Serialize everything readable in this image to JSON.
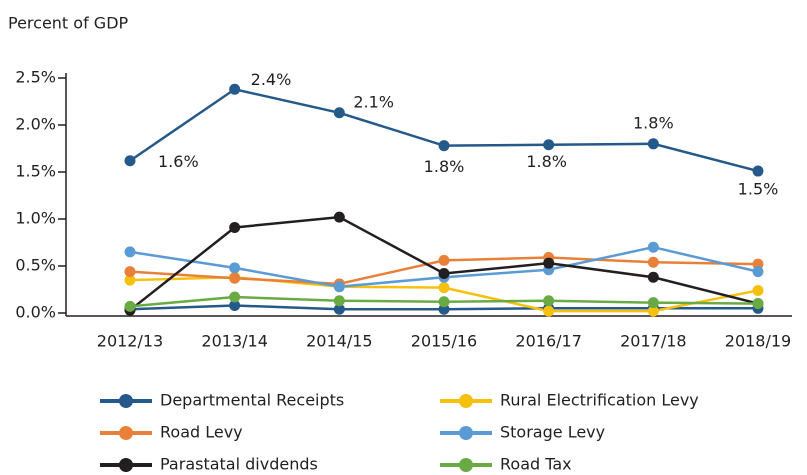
{
  "chart_data": {
    "type": "line",
    "title": "Percent of GDP",
    "categories": [
      "2012/13",
      "2013/14",
      "2014/15",
      "2015/16",
      "2016/17",
      "2017/18",
      "2018/19"
    ],
    "ylim": [
      0,
      2.5
    ],
    "yticks": [
      {
        "value": 0,
        "label": "0.0%"
      },
      {
        "value": 0.5,
        "label": "0.5%"
      },
      {
        "value": 1,
        "label": "1.0%"
      },
      {
        "value": 1.5,
        "label": "1.5%"
      },
      {
        "value": 2,
        "label": "2.0%"
      },
      {
        "value": 2.5,
        "label": "2.5%"
      }
    ],
    "series": [
      {
        "color": "#24598a",
        "values": [
          1.62,
          2.38,
          2.13,
          1.78,
          1.79,
          1.8,
          1.51
        ],
        "value_labels": [
          "1.6%",
          "2.4%",
          "2.1%",
          "1.8%",
          "1.8%",
          "1.8%",
          "1.5%"
        ]
      },
      {
        "name": "Departmental Receipts",
        "color": "#24598a",
        "values": [
          0.04,
          0.08,
          0.04,
          0.04,
          0.05,
          0.05,
          0.05
        ]
      },
      {
        "name": "Rural Electrification Levy",
        "color": "#f6c10e",
        "values": [
          0.35,
          0.38,
          0.28,
          0.27,
          0.02,
          0.02,
          0.24
        ]
      },
      {
        "name": "Road Levy",
        "color": "#e9803a",
        "values": [
          0.44,
          0.37,
          0.31,
          0.56,
          0.59,
          0.54,
          0.52
        ]
      },
      {
        "name": "Storage Levy",
        "color": "#5b9bd5",
        "values": [
          0.65,
          0.48,
          0.28,
          0.38,
          0.46,
          0.7,
          0.44
        ]
      },
      {
        "name": "Parastatal divdends",
        "color": "#231f20",
        "values": [
          0.03,
          0.91,
          1.02,
          0.42,
          0.53,
          0.38,
          0.1
        ]
      },
      {
        "name": "Road Tax",
        "color": "#6aaa45",
        "values": [
          0.07,
          0.17,
          0.13,
          0.12,
          0.13,
          0.11,
          0.1
        ]
      }
    ]
  }
}
